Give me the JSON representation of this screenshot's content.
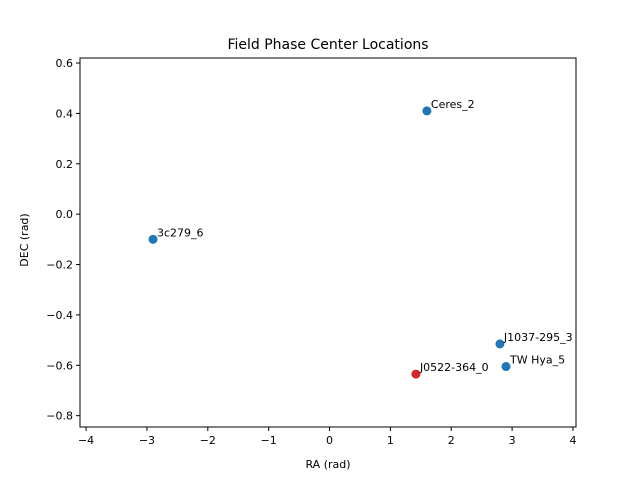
{
  "chart_data": {
    "type": "scatter",
    "title": "Field Phase Center Locations",
    "xlabel": "RA (rad)",
    "ylabel": "DEC (rad)",
    "xlim": [
      -4.1,
      4.05
    ],
    "ylim": [
      -0.845,
      0.62
    ],
    "xticks": [
      -4,
      -3,
      -2,
      -1,
      0,
      1,
      2,
      3,
      4
    ],
    "xtick_labels": [
      "−4",
      "−3",
      "−2",
      "−1",
      "0",
      "1",
      "2",
      "3",
      "4"
    ],
    "yticks": [
      -0.8,
      -0.6,
      -0.4,
      -0.2,
      0.0,
      0.2,
      0.4,
      0.6
    ],
    "ytick_labels": [
      "−0.8",
      "−0.6",
      "−0.4",
      "−0.2",
      "0.0",
      "0.2",
      "0.4",
      "0.6"
    ],
    "grid": false,
    "points": [
      {
        "label": "Ceres_2",
        "x": 1.6,
        "y": 0.41,
        "color": "#1f77b4"
      },
      {
        "label": "3c279_6",
        "x": -2.9,
        "y": -0.1,
        "color": "#1f77b4"
      },
      {
        "label": "J1037-295_3",
        "x": 2.8,
        "y": -0.515,
        "color": "#1f77b4"
      },
      {
        "label": "TW Hya_5",
        "x": 2.9,
        "y": -0.605,
        "color": "#1f77b4"
      },
      {
        "label": "J0522-364_0",
        "x": 1.42,
        "y": -0.635,
        "color": "#d62728"
      }
    ]
  }
}
